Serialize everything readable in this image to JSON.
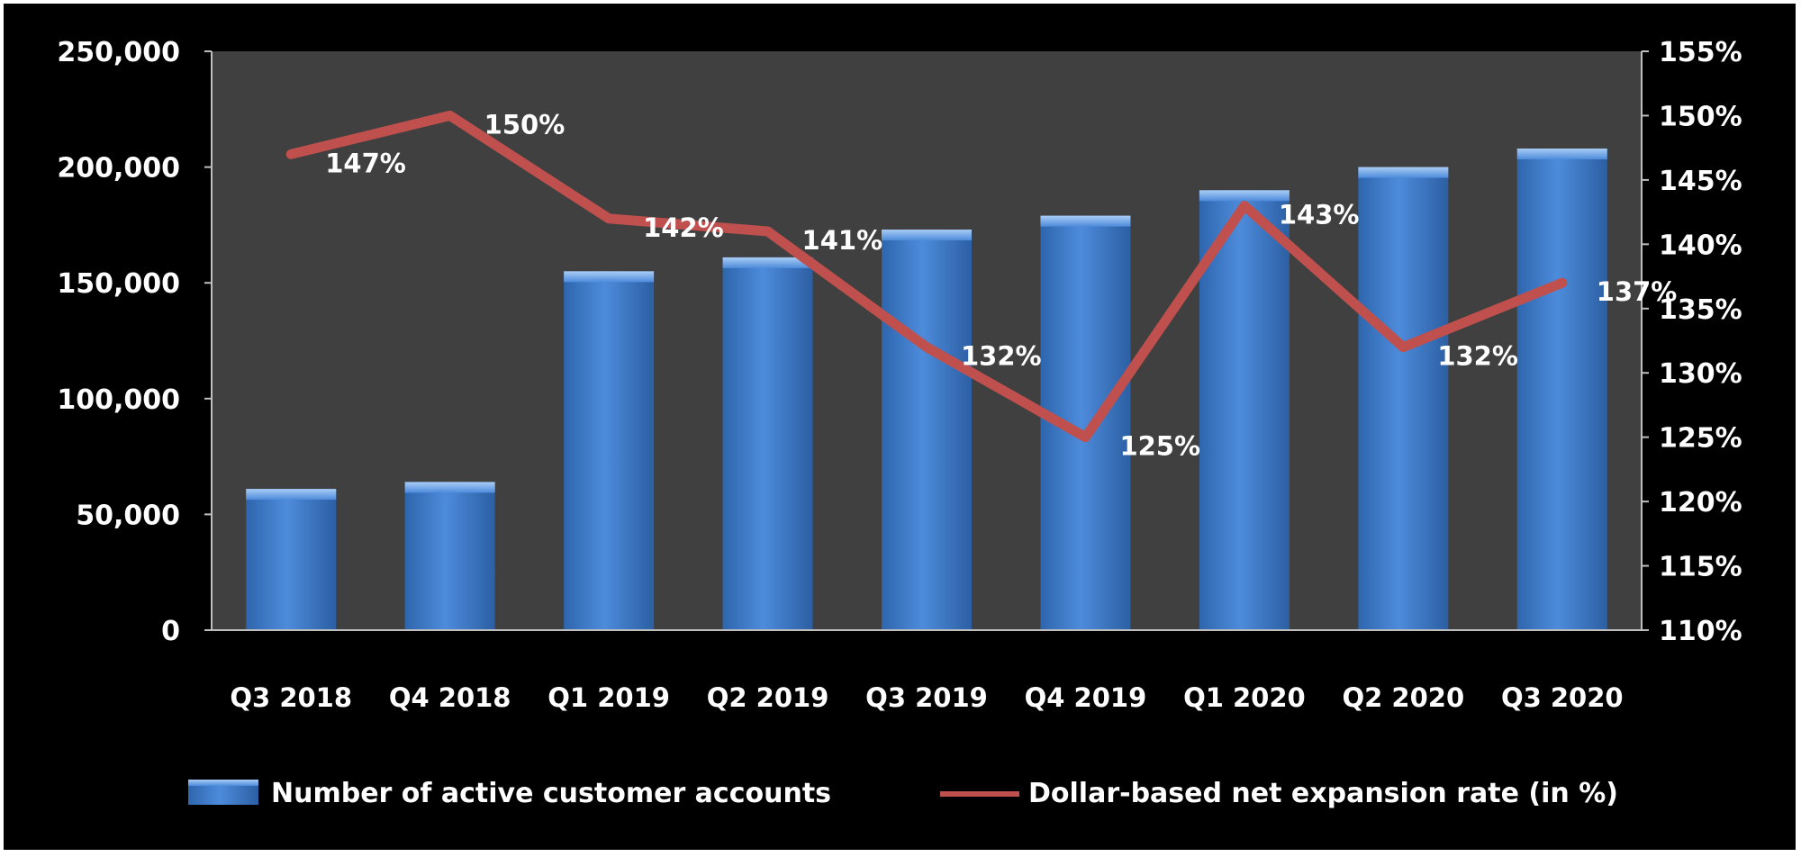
{
  "chart_data": {
    "type": "bar",
    "categories": [
      "Q3 2018",
      "Q4 2018",
      "Q1 2019",
      "Q2 2019",
      "Q3 2019",
      "Q4 2019",
      "Q1 2020",
      "Q2 2020",
      "Q3 2020"
    ],
    "series": [
      {
        "name": "Number of active customer accounts",
        "type": "bar",
        "axis": "left",
        "values": [
          61000,
          64000,
          155000,
          161000,
          173000,
          179000,
          190000,
          200000,
          208000
        ]
      },
      {
        "name": "Dollar-based net expansion rate (in %)",
        "type": "line",
        "axis": "right",
        "values": [
          147,
          150,
          142,
          141,
          132,
          125,
          143,
          132,
          137
        ],
        "labels": [
          "147%",
          "150%",
          "142%",
          "141%",
          "132%",
          "125%",
          "143%",
          "132%",
          "137%"
        ]
      }
    ],
    "y_left": {
      "ylim": [
        0,
        250000
      ],
      "ticks": [
        0,
        50000,
        100000,
        150000,
        200000,
        250000
      ],
      "tick_labels": [
        "0",
        "50,000",
        "100,000",
        "150,000",
        "200,000",
        "250,000"
      ]
    },
    "y_right": {
      "ylim": [
        110,
        155
      ],
      "ticks": [
        110,
        115,
        120,
        125,
        130,
        135,
        140,
        145,
        150,
        155
      ],
      "tick_labels": [
        "110%",
        "115%",
        "120%",
        "125%",
        "130%",
        "135%",
        "140%",
        "145%",
        "150%",
        "155%"
      ]
    },
    "title": "",
    "xlabel": "",
    "ylabel": "",
    "grid": false,
    "legend_position": "bottom",
    "colors": {
      "background": "#000000",
      "plot_area": "#404040",
      "bar": "#4a86d4",
      "line": "#c0504d",
      "text": "#ffffff"
    }
  }
}
